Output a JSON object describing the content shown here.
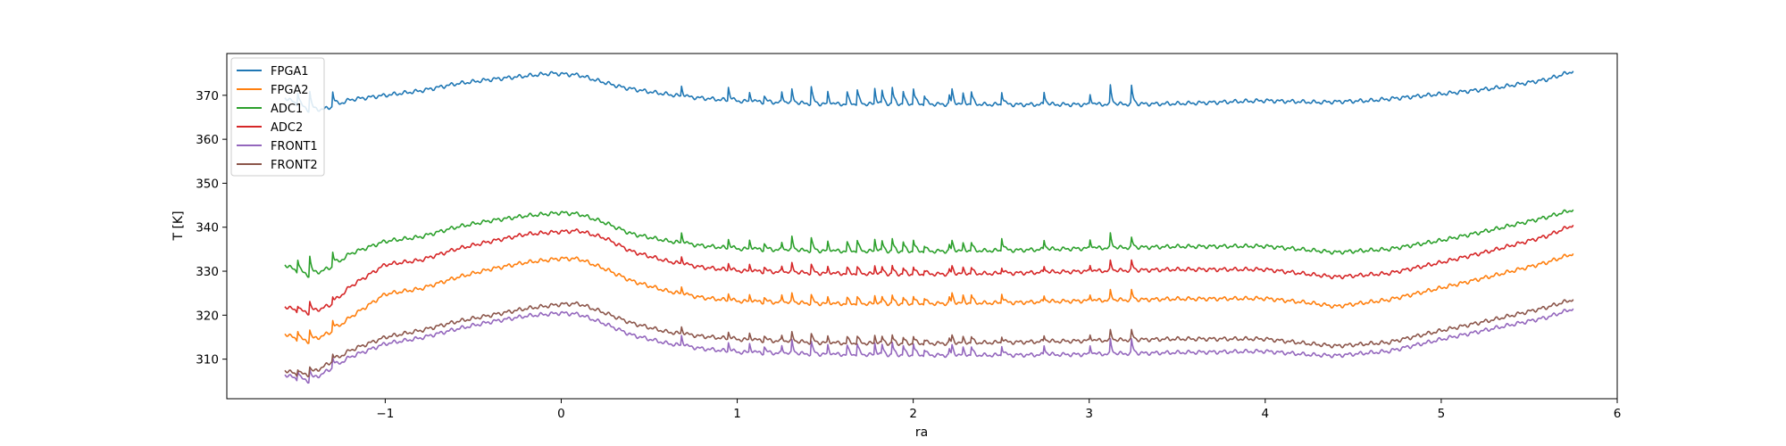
{
  "chart_data": {
    "type": "line",
    "title": "",
    "xlabel": "ra",
    "ylabel": "T [K]",
    "xlim": [
      -1.9,
      6.0
    ],
    "ylim": [
      301.0,
      379.5
    ],
    "xticks": [
      -1,
      0,
      1,
      2,
      3,
      4,
      5,
      6
    ],
    "xtick_labels": [
      "−1",
      "0",
      "1",
      "2",
      "3",
      "4",
      "5",
      "6"
    ],
    "yticks": [
      310,
      320,
      330,
      340,
      350,
      360,
      370
    ],
    "ytick_labels": [
      "310",
      "320",
      "330",
      "340",
      "350",
      "360",
      "370"
    ],
    "grid": false,
    "legend_position": "upper-left",
    "spike_x": [
      -1.5,
      -1.43,
      -1.3,
      0.68,
      0.95,
      1.07,
      1.15,
      1.25,
      1.31,
      1.42,
      1.51,
      1.62,
      1.68,
      1.78,
      1.82,
      1.88,
      1.94,
      2.0,
      2.06,
      2.2,
      2.22,
      2.28,
      2.33,
      2.5,
      2.74,
      3.0,
      3.12,
      3.24
    ],
    "series": [
      {
        "name": "FPGA1",
        "color": "#1f77b4",
        "points": [
          [
            -1.57,
            369.5
          ],
          [
            -1.5,
            368.0
          ],
          [
            -1.43,
            366.5
          ],
          [
            -1.33,
            367.0
          ],
          [
            -1.2,
            369.0
          ],
          [
            -1.0,
            370.0
          ],
          [
            -0.8,
            371.0
          ],
          [
            -0.6,
            372.6
          ],
          [
            -0.4,
            373.6
          ],
          [
            -0.2,
            374.4
          ],
          [
            -0.05,
            375.0
          ],
          [
            0.1,
            374.6
          ],
          [
            0.2,
            373.4
          ],
          [
            0.35,
            371.8
          ],
          [
            0.5,
            370.8
          ],
          [
            0.7,
            369.7
          ],
          [
            1.0,
            368.7
          ],
          [
            1.5,
            368.0
          ],
          [
            2.0,
            368.0
          ],
          [
            2.5,
            367.9
          ],
          [
            3.0,
            367.9
          ],
          [
            3.5,
            368.1
          ],
          [
            4.0,
            368.8
          ],
          [
            4.3,
            368.4
          ],
          [
            4.6,
            368.8
          ],
          [
            5.0,
            370.3
          ],
          [
            5.3,
            371.6
          ],
          [
            5.6,
            373.6
          ],
          [
            5.75,
            375.5
          ]
        ],
        "spike_heights": [
          4,
          5,
          4,
          3,
          3,
          2,
          2,
          3,
          3,
          4,
          4,
          4,
          4,
          4,
          4,
          4,
          4,
          4,
          3,
          3,
          3,
          3,
          3,
          4,
          4,
          3.5,
          4,
          4
        ]
      },
      {
        "name": "FPGA2",
        "color": "#ff7f0e",
        "points": [
          [
            -1.57,
            315.8
          ],
          [
            -1.5,
            314.5
          ],
          [
            -1.43,
            314.0
          ],
          [
            -1.3,
            316.3
          ],
          [
            -1.2,
            319.5
          ],
          [
            -1.0,
            324.8
          ],
          [
            -0.8,
            326.0
          ],
          [
            -0.6,
            328.5
          ],
          [
            -0.4,
            330.5
          ],
          [
            -0.2,
            332.0
          ],
          [
            0.0,
            332.9
          ],
          [
            0.1,
            332.8
          ],
          [
            0.25,
            330.5
          ],
          [
            0.4,
            327.8
          ],
          [
            0.6,
            325.5
          ],
          [
            0.8,
            324.0
          ],
          [
            1.0,
            323.2
          ],
          [
            1.5,
            322.6
          ],
          [
            2.0,
            322.6
          ],
          [
            2.5,
            322.8
          ],
          [
            3.0,
            323.3
          ],
          [
            3.5,
            323.7
          ],
          [
            4.0,
            323.8
          ],
          [
            4.25,
            322.8
          ],
          [
            4.4,
            322.0
          ],
          [
            4.7,
            323.5
          ],
          [
            5.0,
            326.2
          ],
          [
            5.3,
            329.0
          ],
          [
            5.6,
            332.0
          ],
          [
            5.75,
            334.0
          ]
        ],
        "spike_heights": [
          3,
          3,
          3,
          2,
          1.5,
          1.5,
          1.5,
          2,
          2,
          2,
          2,
          2,
          2,
          2,
          2,
          2,
          2,
          2,
          2,
          2,
          2,
          2,
          2,
          3,
          2,
          2,
          2,
          2
        ]
      },
      {
        "name": "ADC1",
        "color": "#2ca02c",
        "points": [
          [
            -1.57,
            331.5
          ],
          [
            -1.5,
            330.0
          ],
          [
            -1.43,
            329.0
          ],
          [
            -1.3,
            331.0
          ],
          [
            -1.2,
            334.0
          ],
          [
            -1.0,
            336.8
          ],
          [
            -0.8,
            337.8
          ],
          [
            -0.6,
            340.0
          ],
          [
            -0.4,
            341.5
          ],
          [
            -0.2,
            342.6
          ],
          [
            0.0,
            343.3
          ],
          [
            0.1,
            343.0
          ],
          [
            0.25,
            341.0
          ],
          [
            0.4,
            338.5
          ],
          [
            0.6,
            336.9
          ],
          [
            0.8,
            335.8
          ],
          [
            1.0,
            335.1
          ],
          [
            1.5,
            334.6
          ],
          [
            2.0,
            334.5
          ],
          [
            2.5,
            334.7
          ],
          [
            3.0,
            335.2
          ],
          [
            3.5,
            335.6
          ],
          [
            4.0,
            335.7
          ],
          [
            4.25,
            334.8
          ],
          [
            4.4,
            334.3
          ],
          [
            4.7,
            335.0
          ],
          [
            5.0,
            337.0
          ],
          [
            5.3,
            339.5
          ],
          [
            5.6,
            342.3
          ],
          [
            5.75,
            344.0
          ]
        ],
        "spike_heights": [
          4,
          5,
          4,
          3,
          2,
          2,
          2,
          2,
          3,
          3,
          3,
          3,
          3,
          3,
          3,
          3,
          3,
          3,
          2,
          2,
          2,
          2,
          2,
          4,
          3,
          3,
          3,
          2
        ]
      },
      {
        "name": "ADC2",
        "color": "#d62728",
        "points": [
          [
            -1.57,
            322.0
          ],
          [
            -1.5,
            321.0
          ],
          [
            -1.43,
            320.5
          ],
          [
            -1.3,
            322.5
          ],
          [
            -1.2,
            326.5
          ],
          [
            -1.0,
            331.5
          ],
          [
            -0.8,
            332.5
          ],
          [
            -0.6,
            335.0
          ],
          [
            -0.4,
            336.8
          ],
          [
            -0.2,
            338.4
          ],
          [
            0.0,
            339.0
          ],
          [
            0.1,
            339.2
          ],
          [
            0.25,
            337.5
          ],
          [
            0.4,
            334.5
          ],
          [
            0.6,
            332.3
          ],
          [
            0.8,
            330.9
          ],
          [
            1.0,
            330.1
          ],
          [
            1.5,
            329.5
          ],
          [
            2.0,
            329.3
          ],
          [
            2.5,
            329.5
          ],
          [
            3.0,
            330.0
          ],
          [
            3.5,
            330.4
          ],
          [
            4.0,
            330.4
          ],
          [
            4.25,
            329.3
          ],
          [
            4.4,
            328.7
          ],
          [
            4.7,
            329.5
          ],
          [
            5.0,
            332.0
          ],
          [
            5.3,
            334.8
          ],
          [
            5.6,
            338.0
          ],
          [
            5.75,
            340.5
          ]
        ],
        "spike_heights": [
          2,
          3,
          2,
          2,
          1.5,
          1.5,
          1.5,
          1.5,
          2,
          2,
          2,
          2,
          2,
          2,
          2,
          2,
          2,
          2,
          1.5,
          1.5,
          1.5,
          1.5,
          1.5,
          2,
          2,
          2,
          2,
          2
        ]
      },
      {
        "name": "FRONT1",
        "color": "#9467bd",
        "points": [
          [
            -1.57,
            306.5
          ],
          [
            -1.5,
            305.5
          ],
          [
            -1.43,
            305.0
          ],
          [
            -1.3,
            308.0
          ],
          [
            -1.2,
            310.5
          ],
          [
            -1.0,
            313.5
          ],
          [
            -0.8,
            314.8
          ],
          [
            -0.6,
            316.8
          ],
          [
            -0.4,
            318.5
          ],
          [
            -0.2,
            319.8
          ],
          [
            0.0,
            320.5
          ],
          [
            0.1,
            320.2
          ],
          [
            0.25,
            318.0
          ],
          [
            0.4,
            315.5
          ],
          [
            0.6,
            313.6
          ],
          [
            0.8,
            312.4
          ],
          [
            1.0,
            311.6
          ],
          [
            1.5,
            311.1
          ],
          [
            2.0,
            310.9
          ],
          [
            2.5,
            310.9
          ],
          [
            3.0,
            311.1
          ],
          [
            3.5,
            311.5
          ],
          [
            4.0,
            311.8
          ],
          [
            4.25,
            311.0
          ],
          [
            4.4,
            310.8
          ],
          [
            4.7,
            311.8
          ],
          [
            5.0,
            314.5
          ],
          [
            5.3,
            317.0
          ],
          [
            5.6,
            319.5
          ],
          [
            5.75,
            321.5
          ]
        ],
        "spike_heights": [
          3,
          3,
          3,
          3,
          2,
          2,
          2,
          2,
          3,
          3,
          3,
          3,
          3,
          3,
          3,
          3,
          3,
          3,
          2,
          2,
          2,
          2,
          2,
          3,
          3,
          3,
          3,
          3
        ]
      },
      {
        "name": "FRONT2",
        "color": "#8c564b",
        "points": [
          [
            -1.57,
            307.5
          ],
          [
            -1.5,
            306.5
          ],
          [
            -1.43,
            306.5
          ],
          [
            -1.3,
            309.5
          ],
          [
            -1.2,
            312.0
          ],
          [
            -1.0,
            315.0
          ],
          [
            -0.8,
            316.5
          ],
          [
            -0.6,
            318.5
          ],
          [
            -0.4,
            320.0
          ],
          [
            -0.2,
            321.5
          ],
          [
            0.0,
            322.5
          ],
          [
            0.1,
            322.6
          ],
          [
            0.25,
            320.5
          ],
          [
            0.4,
            318.2
          ],
          [
            0.6,
            316.2
          ],
          [
            0.8,
            315.2
          ],
          [
            1.0,
            314.5
          ],
          [
            1.5,
            313.7
          ],
          [
            2.0,
            313.5
          ],
          [
            2.5,
            313.8
          ],
          [
            3.0,
            314.2
          ],
          [
            3.5,
            314.6
          ],
          [
            4.0,
            314.6
          ],
          [
            4.25,
            313.5
          ],
          [
            4.4,
            313.0
          ],
          [
            4.7,
            313.8
          ],
          [
            5.0,
            316.5
          ],
          [
            5.3,
            319.0
          ],
          [
            5.6,
            321.8
          ],
          [
            5.75,
            323.6
          ]
        ],
        "spike_heights": [
          2,
          2,
          2,
          2,
          1.5,
          1.5,
          1.5,
          1.5,
          2,
          2,
          2,
          2,
          2,
          2,
          2,
          2,
          2,
          2,
          1.5,
          1.5,
          1.5,
          1.5,
          1.5,
          2,
          2,
          2,
          2,
          2
        ]
      }
    ]
  }
}
